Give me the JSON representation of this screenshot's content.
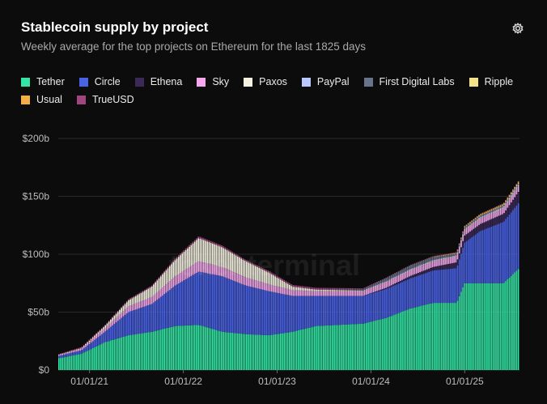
{
  "header": {
    "title": "Stablecoin supply by project",
    "subtitle": "Weekly average for the top projects on Ethereum for the last 1825 days",
    "settings_icon": "gear-icon"
  },
  "watermark": "tokenterminal",
  "chart_data": {
    "type": "area",
    "title": "Stablecoin supply by project",
    "subtitle": "Weekly average for the top projects on Ethereum for the last 1825 days",
    "xlabel": "",
    "ylabel": "",
    "ylim": [
      0,
      200
    ],
    "y_unit": "billions USD",
    "y_ticks": [
      "$0",
      "$50b",
      "$100b",
      "$150b",
      "$200b"
    ],
    "x_ticks": [
      "01/01/21",
      "01/01/22",
      "01/01/23",
      "01/01/24",
      "01/01/25"
    ],
    "grid": true,
    "legend_position": "top",
    "x": [
      "2020-09",
      "2020-12",
      "2021-03",
      "2021-06",
      "2021-09",
      "2021-12",
      "2022-03",
      "2022-06",
      "2022-09",
      "2022-12",
      "2023-03",
      "2023-06",
      "2023-09",
      "2023-12",
      "2024-03",
      "2024-06",
      "2024-09",
      "2024-12",
      "2025-01",
      "2025-03",
      "2025-06",
      "2025-08"
    ],
    "series": [
      {
        "name": "Tether",
        "color": "#33e6a5",
        "values": [
          10,
          14,
          24,
          30,
          33,
          38,
          39,
          33,
          31,
          30,
          33,
          38,
          39,
          40,
          45,
          53,
          58,
          58,
          75,
          75,
          75,
          88
        ]
      },
      {
        "name": "Circle",
        "color": "#4a63e6",
        "values": [
          2,
          3,
          9,
          20,
          24,
          35,
          46,
          48,
          42,
          38,
          31,
          26,
          25,
          24,
          25,
          26,
          28,
          30,
          35,
          45,
          53,
          57
        ]
      },
      {
        "name": "Ethena",
        "color": "#3b2a58",
        "values": [
          0,
          0,
          0,
          0,
          0,
          0,
          0,
          0,
          0,
          0,
          0,
          0,
          0,
          0,
          1,
          2,
          3,
          5,
          6,
          6,
          7,
          10
        ]
      },
      {
        "name": "Sky",
        "color": "#f5a8ee",
        "values": [
          0.5,
          1.5,
          3,
          5,
          6,
          8,
          9,
          8,
          7,
          6,
          5,
          4,
          4,
          4,
          5,
          5,
          5,
          5,
          5,
          5,
          5,
          5
        ]
      },
      {
        "name": "Paxos",
        "color": "#f5f1e1",
        "values": [
          0.5,
          0.5,
          2,
          5,
          9,
          14,
          20,
          17,
          14,
          10,
          3,
          1.5,
          1,
          0.5,
          0.5,
          0.5,
          0.5,
          0.5,
          0.5,
          0.5,
          0.5,
          0.5
        ]
      },
      {
        "name": "PayPal",
        "color": "#b9c8ff",
        "values": [
          0,
          0,
          0,
          0,
          0,
          0,
          0,
          0,
          0,
          0,
          0,
          0,
          0.1,
          0.2,
          0.3,
          0.5,
          0.6,
          0.6,
          0.5,
          0.7,
          0.8,
          1
        ]
      },
      {
        "name": "First Digital Labs",
        "color": "#68738c",
        "values": [
          0,
          0,
          0,
          0,
          0,
          0,
          0,
          0,
          0,
          0,
          0,
          0,
          0.5,
          1,
          2.5,
          3,
          2.5,
          1.5,
          1,
          1,
          0.8,
          0.5
        ]
      },
      {
        "name": "Ripple",
        "color": "#f3e28a",
        "values": [
          0,
          0,
          0,
          0,
          0,
          0,
          0,
          0,
          0,
          0,
          0,
          0,
          0,
          0,
          0,
          0,
          0,
          0.1,
          0.2,
          0.4,
          0.6,
          0.8
        ]
      },
      {
        "name": "Usual",
        "color": "#f5ad45",
        "values": [
          0,
          0,
          0,
          0,
          0,
          0,
          0,
          0,
          0,
          0,
          0,
          0,
          0,
          0,
          0,
          0,
          0.3,
          0.6,
          0.8,
          0.9,
          1,
          1
        ]
      },
      {
        "name": "TrueUSD",
        "color": "#a0457f",
        "values": [
          0.5,
          0.8,
          0.7,
          1,
          1,
          1.5,
          1.5,
          1.5,
          1.2,
          1.5,
          1.5,
          1.5,
          1.2,
          0.8,
          0.6,
          0.5,
          0.5,
          0.5,
          0.5,
          0.4,
          0.4,
          0.4
        ]
      }
    ]
  }
}
